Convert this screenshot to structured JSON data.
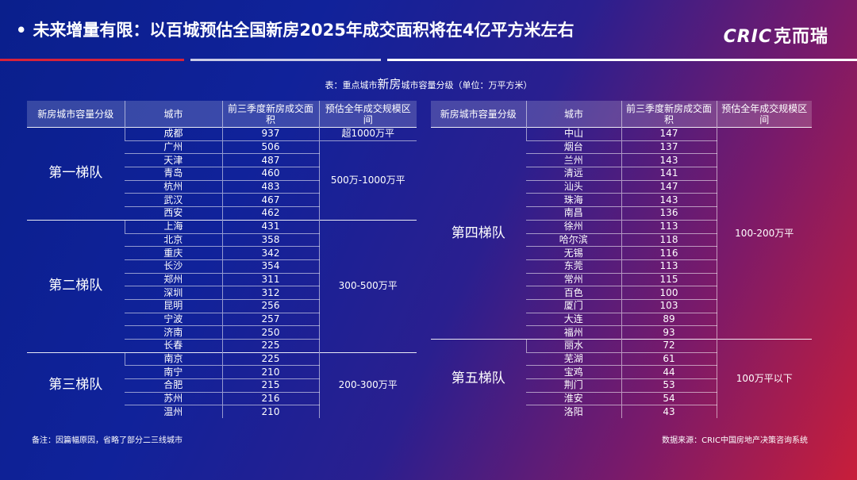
{
  "title": "未来增量有限：以百城预估全国新房2025年成交面积将在4亿平方米左右",
  "logo": {
    "latin": "CRIC",
    "cn": "克而瑞"
  },
  "caption": {
    "prefix": "表：重点城市",
    "big": "新房",
    "suffix": "城市容量分级（单位：万平方米）"
  },
  "headers": {
    "tier": "新房城市容量分级",
    "city": "城市",
    "area": "前三季度新房成交面积",
    "range": "预估全年成交规模区间"
  },
  "left_groups": [
    {
      "tier": "",
      "ranges": [
        {
          "label": "超1000万平",
          "rows": [
            {
              "city": "成都",
              "value": "937"
            }
          ]
        }
      ]
    },
    {
      "tier": "第一梯队",
      "ranges": [
        {
          "label": "500万-1000万平",
          "rows": [
            {
              "city": "广州",
              "value": "506"
            },
            {
              "city": "天津",
              "value": "487"
            },
            {
              "city": "青岛",
              "value": "460"
            },
            {
              "city": "杭州",
              "value": "483"
            },
            {
              "city": "武汉",
              "value": "467"
            },
            {
              "city": "西安",
              "value": "462"
            }
          ]
        }
      ]
    },
    {
      "tier": "第二梯队",
      "ranges": [
        {
          "label": "300-500万平",
          "rows": [
            {
              "city": "上海",
              "value": "431"
            },
            {
              "city": "北京",
              "value": "358"
            },
            {
              "city": "重庆",
              "value": "342"
            },
            {
              "city": "长沙",
              "value": "354"
            },
            {
              "city": "郑州",
              "value": "311"
            },
            {
              "city": "深圳",
              "value": "312"
            },
            {
              "city": "昆明",
              "value": "256"
            },
            {
              "city": "宁波",
              "value": "257"
            },
            {
              "city": "济南",
              "value": "250"
            },
            {
              "city": "长春",
              "value": "225"
            }
          ]
        }
      ]
    },
    {
      "tier": "第三梯队",
      "ranges": [
        {
          "label": "200-300万平",
          "rows": [
            {
              "city": "南京",
              "value": "225"
            },
            {
              "city": "南宁",
              "value": "210"
            },
            {
              "city": "合肥",
              "value": "215"
            },
            {
              "city": "苏州",
              "value": "216"
            },
            {
              "city": "温州",
              "value": "210"
            }
          ]
        }
      ]
    }
  ],
  "right_groups": [
    {
      "tier": "第四梯队",
      "ranges": [
        {
          "label": "100-200万平",
          "rows": [
            {
              "city": "中山",
              "value": "147"
            },
            {
              "city": "烟台",
              "value": "137"
            },
            {
              "city": "兰州",
              "value": "143"
            },
            {
              "city": "清远",
              "value": "141"
            },
            {
              "city": "汕头",
              "value": "147"
            },
            {
              "city": "珠海",
              "value": "143"
            },
            {
              "city": "南昌",
              "value": "136"
            },
            {
              "city": "徐州",
              "value": "113"
            },
            {
              "city": "哈尔滨",
              "value": "118"
            },
            {
              "city": "无锡",
              "value": "116"
            },
            {
              "city": "东莞",
              "value": "113"
            },
            {
              "city": "常州",
              "value": "115"
            },
            {
              "city": "百色",
              "value": "100"
            },
            {
              "city": "厦门",
              "value": "103"
            },
            {
              "city": "大连",
              "value": "89"
            },
            {
              "city": "福州",
              "value": "93"
            }
          ]
        }
      ]
    },
    {
      "tier": "第五梯队",
      "ranges": [
        {
          "label": "100万平以下",
          "rows": [
            {
              "city": "丽水",
              "value": "72"
            },
            {
              "city": "芜湖",
              "value": "61"
            },
            {
              "city": "宝鸡",
              "value": "44"
            },
            {
              "city": "荆门",
              "value": "53"
            },
            {
              "city": "淮安",
              "value": "54"
            },
            {
              "city": "洛阳",
              "value": "43"
            }
          ]
        }
      ]
    }
  ],
  "note": "备注：因篇幅原因，省略了部分二三线城市",
  "source": "数据来源：CRIC中国房地产决策咨询系统"
}
